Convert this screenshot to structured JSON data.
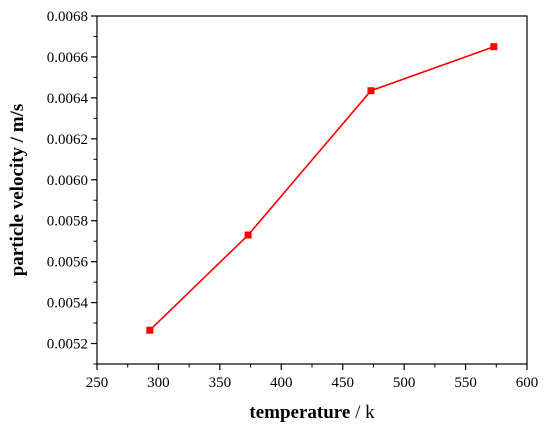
{
  "chart_data": {
    "type": "line",
    "title": "",
    "xlabel_main": "temperature",
    "xlabel_unit": " / k",
    "ylabel_main": "particle velocity",
    "ylabel_unit": " / m/s",
    "xlim": [
      250,
      600
    ],
    "ylim": [
      0.0051,
      0.0068
    ],
    "x_ticks": [
      250,
      300,
      350,
      400,
      450,
      500,
      550,
      600
    ],
    "x_tick_labels": [
      "250",
      "300",
      "350",
      "400",
      "450",
      "500",
      "550",
      "600"
    ],
    "y_ticks": [
      0.0052,
      0.0054,
      0.0056,
      0.0058,
      0.006,
      0.0062,
      0.0064,
      0.0066,
      0.0068
    ],
    "y_tick_labels": [
      "0.0052",
      "0.0054",
      "0.0056",
      "0.0058",
      "0.0060",
      "0.0062",
      "0.0064",
      "0.0066",
      "0.0068"
    ],
    "grid": false,
    "series": [
      {
        "color": "#ff0000",
        "marker": "square",
        "x": [
          293,
          373,
          473,
          573
        ],
        "y": [
          0.005265,
          0.00573,
          0.006435,
          0.00665
        ]
      }
    ]
  }
}
